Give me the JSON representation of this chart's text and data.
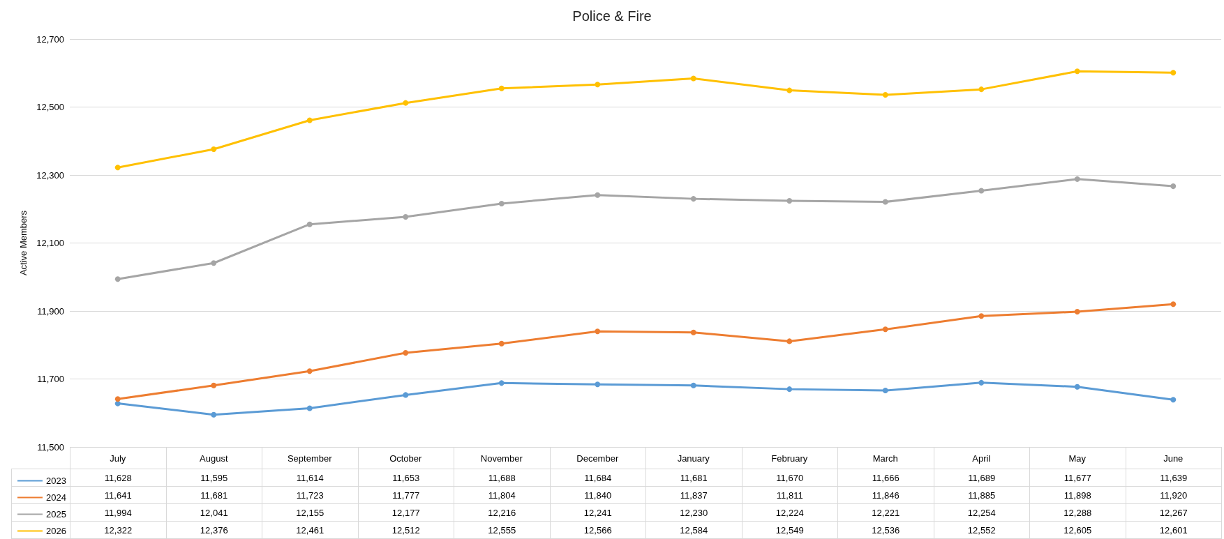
{
  "chart_data": {
    "type": "line",
    "title": "Police & Fire",
    "ylabel": "Active Members",
    "categories": [
      "July",
      "August",
      "September",
      "October",
      "November",
      "December",
      "January",
      "February",
      "March",
      "April",
      "May",
      "June"
    ],
    "series": [
      {
        "name": "2023",
        "color": "#5b9bd5",
        "values": [
          11628,
          11595,
          11614,
          11653,
          11688,
          11684,
          11681,
          11670,
          11666,
          11689,
          11677,
          11639
        ],
        "value_labels": [
          "11,628",
          "11,595",
          "11,614",
          "11,653",
          "11,688",
          "11,684",
          "11,681",
          "11,670",
          "11,666",
          "11,689",
          "11,677",
          "11,639"
        ]
      },
      {
        "name": "2024",
        "color": "#ed7d31",
        "values": [
          11641,
          11681,
          11723,
          11777,
          11804,
          11840,
          11837,
          11811,
          11846,
          11885,
          11898,
          11920
        ],
        "value_labels": [
          "11,641",
          "11,681",
          "11,723",
          "11,777",
          "11,804",
          "11,840",
          "11,837",
          "11,811",
          "11,846",
          "11,885",
          "11,898",
          "11,920"
        ]
      },
      {
        "name": "2025",
        "color": "#a5a5a5",
        "values": [
          11994,
          12041,
          12155,
          12177,
          12216,
          12241,
          12230,
          12224,
          12221,
          12254,
          12288,
          12267
        ],
        "value_labels": [
          "11,994",
          "12,041",
          "12,155",
          "12,177",
          "12,216",
          "12,241",
          "12,230",
          "12,224",
          "12,221",
          "12,254",
          "12,288",
          "12,267"
        ]
      },
      {
        "name": "2026",
        "color": "#ffc000",
        "values": [
          12322,
          12376,
          12461,
          12512,
          12555,
          12566,
          12584,
          12549,
          12536,
          12552,
          12605,
          12601
        ],
        "value_labels": [
          "12,322",
          "12,376",
          "12,461",
          "12,512",
          "12,555",
          "12,566",
          "12,584",
          "12,549",
          "12,536",
          "12,552",
          "12,605",
          "12,601"
        ]
      }
    ],
    "ylim": [
      11500,
      12700
    ],
    "yticks": [
      {
        "value": 11500,
        "label": "11,500"
      },
      {
        "value": 11700,
        "label": "11,700"
      },
      {
        "value": 11900,
        "label": "11,900"
      },
      {
        "value": 12100,
        "label": "12,100"
      },
      {
        "value": 12300,
        "label": "12,300"
      },
      {
        "value": 12500,
        "label": "12,500"
      },
      {
        "value": 12700,
        "label": "12,700"
      }
    ],
    "grid": "y",
    "legend": "bottom",
    "marker": "circle",
    "line_style": "solid"
  }
}
